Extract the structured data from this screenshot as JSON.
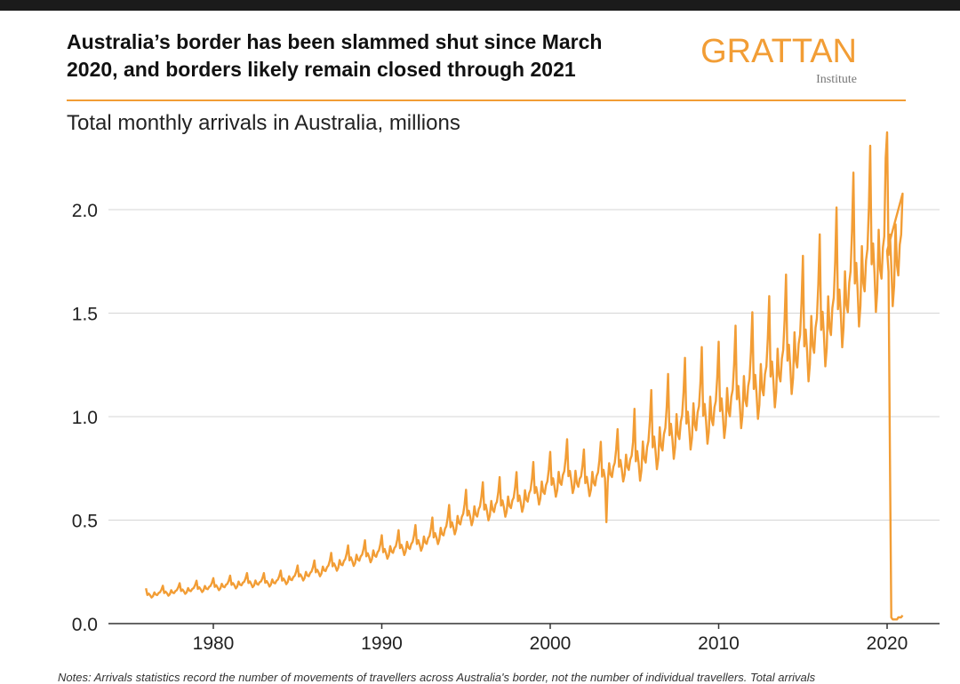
{
  "header": {
    "title_line1": "Australia’s border has been slammed shut since March",
    "title_line2": "2020, and borders likely remain closed through 2021",
    "subtitle": "Total monthly arrivals in Australia, millions"
  },
  "logo": {
    "word": "GRATTAN",
    "sub": "Institute"
  },
  "notes": "Notes: Arrivals statistics record the number of movements of travellers across Australia's border, not the number of individual travellers. Total arrivals",
  "colors": {
    "line": "#f29d35",
    "grid": "#d6d6d6",
    "axis": "#333333",
    "accent": "#f29d35"
  },
  "chart_data": {
    "type": "line",
    "title": "Australia’s border has been slammed shut since March 2020, and borders likely remain closed through 2021",
    "subtitle": "Total monthly arrivals in Australia, millions",
    "xlabel": "",
    "ylabel": "",
    "xlim": [
      1975,
      2023
    ],
    "ylim": [
      0,
      2.3
    ],
    "xticks": [
      1980,
      1990,
      2000,
      2010,
      2020
    ],
    "xtick_labels": [
      "1980",
      "1990",
      "2000",
      "2010",
      "2020"
    ],
    "yticks": [
      0,
      0.5,
      1.0,
      1.5,
      2.0
    ],
    "ytick_labels": [
      "0.0",
      "0.5",
      "1.0",
      "1.5",
      "2.0"
    ],
    "grid": "horizontal",
    "series": [
      {
        "frequency": "monthly",
        "start": "1976-01",
        "annual_base": [
          0.14,
          0.15,
          0.16,
          0.17,
          0.18,
          0.19,
          0.2,
          0.2,
          0.21,
          0.23,
          0.25,
          0.28,
          0.31,
          0.33,
          0.35,
          0.37,
          0.39,
          0.42,
          0.47,
          0.53,
          0.56,
          0.58,
          0.6,
          0.64,
          0.68,
          0.73,
          0.69,
          0.72,
          0.77,
          0.8,
          0.87,
          0.93,
          0.99,
          1.03,
          1.05,
          1.11,
          1.16,
          1.22,
          1.3,
          1.37,
          1.45,
          1.55,
          1.68,
          1.78,
          1.83
        ],
        "seasonal_factor": [
          1.22,
          0.98,
          1.02,
          0.96,
          0.88,
          0.92,
          1.04,
          0.96,
          0.94,
          1.0,
          1.02,
          1.1
        ],
        "dip_2003": {
          "date": "2003-05",
          "value": 0.49
        },
        "peak_2019": {
          "date": "2019-12",
          "value": 2.25
        },
        "covid": [
          [
            "2020-01",
            1.8
          ],
          [
            "2020-02",
            1.7
          ],
          [
            "2020-03",
            0.8
          ],
          [
            "2020-04",
            0.03
          ],
          [
            "2020-05",
            0.02
          ],
          [
            "2020-06",
            0.02
          ],
          [
            "2020-07",
            0.02
          ],
          [
            "2020-08",
            0.02
          ],
          [
            "2020-09",
            0.03
          ],
          [
            "2020-10",
            0.03
          ],
          [
            "2020-11",
            0.03
          ],
          [
            "2020-12",
            0.04
          ]
        ]
      }
    ]
  }
}
